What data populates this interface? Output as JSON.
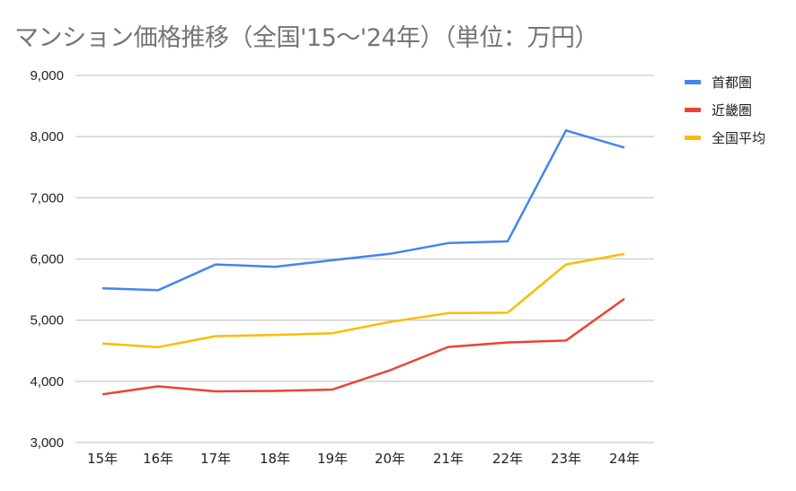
{
  "chart_data": {
    "type": "line",
    "title": "マンション価格推移（全国'15〜'24年）（単位：万円）",
    "xlabel": "",
    "ylabel": "",
    "categories": [
      "15年",
      "16年",
      "17年",
      "18年",
      "19年",
      "20年",
      "21年",
      "22年",
      "23年",
      "24年"
    ],
    "y_ticks": [
      "3,000",
      "4,000",
      "5,000",
      "6,000",
      "7,000",
      "8,000",
      "9,000"
    ],
    "ylim": [
      3000,
      9000
    ],
    "grid": true,
    "legend_position": "right",
    "series": [
      {
        "name": "首都圏",
        "color": "#4285f4",
        "values": [
          5521,
          5490,
          5911,
          5871,
          5980,
          6083,
          6260,
          6288,
          8101,
          7820
        ]
      },
      {
        "name": "近畿圏",
        "color": "#ea4335",
        "values": [
          3788,
          3918,
          3836,
          3844,
          3866,
          4181,
          4562,
          4635,
          4666,
          5349
        ]
      },
      {
        "name": "全国平均",
        "color": "#fbbc04",
        "values": [
          4618,
          4559,
          4739,
          4759,
          4787,
          4971,
          5115,
          5121,
          5911,
          6082
        ]
      }
    ]
  }
}
